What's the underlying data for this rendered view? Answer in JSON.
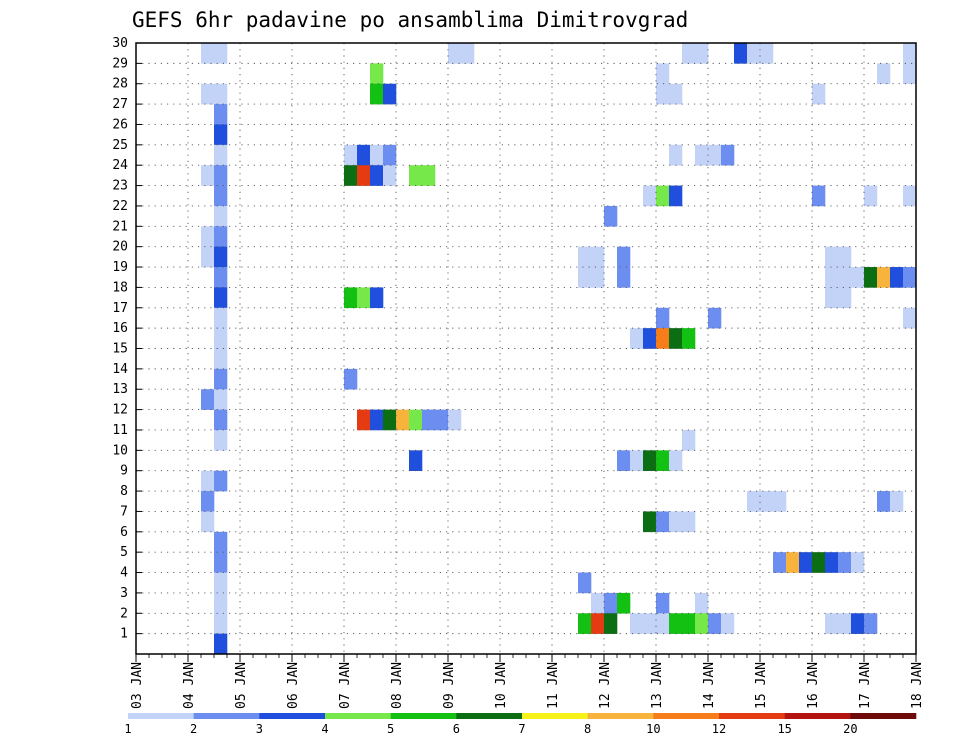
{
  "chart_data": {
    "type": "heatmap",
    "title": "GEFS 6hr padavine po ansamblima Dimitrovgrad",
    "xlabel": "",
    "ylabel": "",
    "x_ticks": [
      "03 JAN",
      "04 JAN",
      "05 JAN",
      "06 JAN",
      "07 JAN",
      "08 JAN",
      "09 JAN",
      "10 JAN",
      "11 JAN",
      "12 JAN",
      "13 JAN",
      "14 JAN",
      "15 JAN",
      "16 JAN",
      "17 JAN",
      "18 JAN"
    ],
    "x_range": [
      0,
      60
    ],
    "y_ticks": [
      "1",
      "2",
      "3",
      "4",
      "5",
      "6",
      "7",
      "8",
      "9",
      "10",
      "11",
      "12",
      "13",
      "14",
      "15",
      "16",
      "17",
      "18",
      "19",
      "20",
      "21",
      "22",
      "23",
      "24",
      "25",
      "26",
      "27",
      "28",
      "29",
      "30"
    ],
    "y_range": [
      0,
      30
    ],
    "grid": true,
    "colorbar": {
      "labels": [
        "1",
        "2",
        "3",
        "4",
        "5",
        "6",
        "7",
        "8",
        "10",
        "12",
        "15",
        "20"
      ],
      "colors": [
        "#c3d3f7",
        "#6b8ef0",
        "#1f4fdc",
        "#77e84a",
        "#12c112",
        "#0b6e12",
        "#f6f21a",
        "#f8b33c",
        "#f77d1a",
        "#e53b12",
        "#b31410",
        "#6e0a0a"
      ]
    },
    "cells": [
      [
        5,
        30,
        0
      ],
      [
        6,
        30,
        0
      ],
      [
        24,
        30,
        0
      ],
      [
        25,
        30,
        0
      ],
      [
        42,
        30,
        0
      ],
      [
        43,
        30,
        0
      ],
      [
        46,
        30,
        2
      ],
      [
        47,
        30,
        0
      ],
      [
        48,
        30,
        0
      ],
      [
        59,
        30,
        0
      ],
      [
        18,
        29,
        3
      ],
      [
        40,
        29,
        0
      ],
      [
        57,
        29,
        0
      ],
      [
        59,
        29,
        0
      ],
      [
        5,
        28,
        0
      ],
      [
        6,
        28,
        0
      ],
      [
        18,
        28,
        4
      ],
      [
        19,
        28,
        2
      ],
      [
        40,
        28,
        0
      ],
      [
        41,
        28,
        0
      ],
      [
        52,
        28,
        0
      ],
      [
        6,
        27,
        1
      ],
      [
        6,
        26,
        2
      ],
      [
        6,
        25,
        0
      ],
      [
        16,
        25,
        0
      ],
      [
        17,
        25,
        2
      ],
      [
        18,
        25,
        0
      ],
      [
        19,
        25,
        1
      ],
      [
        41,
        25,
        0
      ],
      [
        43,
        25,
        0
      ],
      [
        44,
        25,
        0
      ],
      [
        45,
        25,
        1
      ],
      [
        5,
        24,
        0
      ],
      [
        6,
        24,
        1
      ],
      [
        21,
        24,
        3
      ],
      [
        22,
        24,
        3
      ],
      [
        16,
        24,
        5
      ],
      [
        17,
        24,
        9
      ],
      [
        18,
        24,
        2
      ],
      [
        19,
        24,
        0
      ],
      [
        6,
        23,
        1
      ],
      [
        39,
        23,
        0
      ],
      [
        40,
        23,
        3
      ],
      [
        41,
        23,
        2
      ],
      [
        52,
        23,
        1
      ],
      [
        56,
        23,
        0
      ],
      [
        59,
        23,
        0
      ],
      [
        6,
        22,
        0
      ],
      [
        36,
        22,
        1
      ],
      [
        5,
        21,
        0
      ],
      [
        6,
        21,
        1
      ],
      [
        5,
        20,
        0
      ],
      [
        6,
        20,
        2
      ],
      [
        34,
        20,
        0
      ],
      [
        35,
        20,
        0
      ],
      [
        37,
        20,
        1
      ],
      [
        53,
        20,
        0
      ],
      [
        54,
        20,
        0
      ],
      [
        6,
        19,
        1
      ],
      [
        34,
        19,
        0
      ],
      [
        35,
        19,
        0
      ],
      [
        37,
        19,
        1
      ],
      [
        53,
        19,
        0
      ],
      [
        54,
        19,
        0
      ],
      [
        55,
        19,
        0
      ],
      [
        56,
        19,
        5
      ],
      [
        57,
        19,
        7
      ],
      [
        58,
        19,
        2
      ],
      [
        59,
        19,
        1
      ],
      [
        6,
        18,
        2
      ],
      [
        16,
        18,
        4
      ],
      [
        17,
        18,
        3
      ],
      [
        18,
        18,
        2
      ],
      [
        53,
        18,
        0
      ],
      [
        54,
        18,
        0
      ],
      [
        6,
        17,
        0
      ],
      [
        40,
        17,
        1
      ],
      [
        44,
        17,
        1
      ],
      [
        59,
        17,
        0
      ],
      [
        6,
        16,
        0
      ],
      [
        38,
        16,
        0
      ],
      [
        39,
        16,
        2
      ],
      [
        40,
        16,
        8
      ],
      [
        41,
        16,
        5
      ],
      [
        42,
        16,
        4
      ],
      [
        6,
        15,
        0
      ],
      [
        6,
        14,
        1
      ],
      [
        16,
        14,
        1
      ],
      [
        5,
        13,
        1
      ],
      [
        6,
        13,
        0
      ],
      [
        17,
        12,
        9
      ],
      [
        18,
        12,
        2
      ],
      [
        19,
        12,
        5
      ],
      [
        20,
        12,
        7
      ],
      [
        21,
        12,
        3
      ],
      [
        22,
        12,
        1
      ],
      [
        23,
        12,
        1
      ],
      [
        24,
        12,
        0
      ],
      [
        6,
        12,
        1
      ],
      [
        6,
        11,
        0
      ],
      [
        42,
        11,
        0
      ],
      [
        21,
        10,
        2
      ],
      [
        37,
        10,
        1
      ],
      [
        38,
        10,
        0
      ],
      [
        39,
        10,
        5
      ],
      [
        40,
        10,
        4
      ],
      [
        41,
        10,
        0
      ],
      [
        5,
        9,
        0
      ],
      [
        6,
        9,
        1
      ],
      [
        5,
        8,
        1
      ],
      [
        47,
        8,
        0
      ],
      [
        48,
        8,
        0
      ],
      [
        49,
        8,
        0
      ],
      [
        57,
        8,
        1
      ],
      [
        58,
        8,
        0
      ],
      [
        5,
        7,
        0
      ],
      [
        39,
        7,
        5
      ],
      [
        40,
        7,
        1
      ],
      [
        41,
        7,
        0
      ],
      [
        42,
        7,
        0
      ],
      [
        6,
        6,
        1
      ],
      [
        6,
        5,
        1
      ],
      [
        49,
        5,
        1
      ],
      [
        50,
        5,
        7
      ],
      [
        51,
        5,
        2
      ],
      [
        52,
        5,
        5
      ],
      [
        53,
        5,
        2
      ],
      [
        54,
        5,
        1
      ],
      [
        55,
        5,
        0
      ],
      [
        6,
        4,
        0
      ],
      [
        34,
        4,
        1
      ],
      [
        6,
        3,
        0
      ],
      [
        35,
        3,
        0
      ],
      [
        36,
        3,
        1
      ],
      [
        37,
        3,
        4
      ],
      [
        40,
        3,
        1
      ],
      [
        43,
        3,
        0
      ],
      [
        6,
        2,
        0
      ],
      [
        34,
        2,
        4
      ],
      [
        35,
        2,
        9
      ],
      [
        36,
        2,
        5
      ],
      [
        38,
        2,
        0
      ],
      [
        39,
        2,
        0
      ],
      [
        40,
        2,
        0
      ],
      [
        41,
        2,
        4
      ],
      [
        42,
        2,
        4
      ],
      [
        43,
        2,
        3
      ],
      [
        44,
        2,
        1
      ],
      [
        45,
        2,
        0
      ],
      [
        53,
        2,
        0
      ],
      [
        54,
        2,
        0
      ],
      [
        55,
        2,
        2
      ],
      [
        56,
        2,
        1
      ],
      [
        6,
        1,
        2
      ]
    ]
  }
}
